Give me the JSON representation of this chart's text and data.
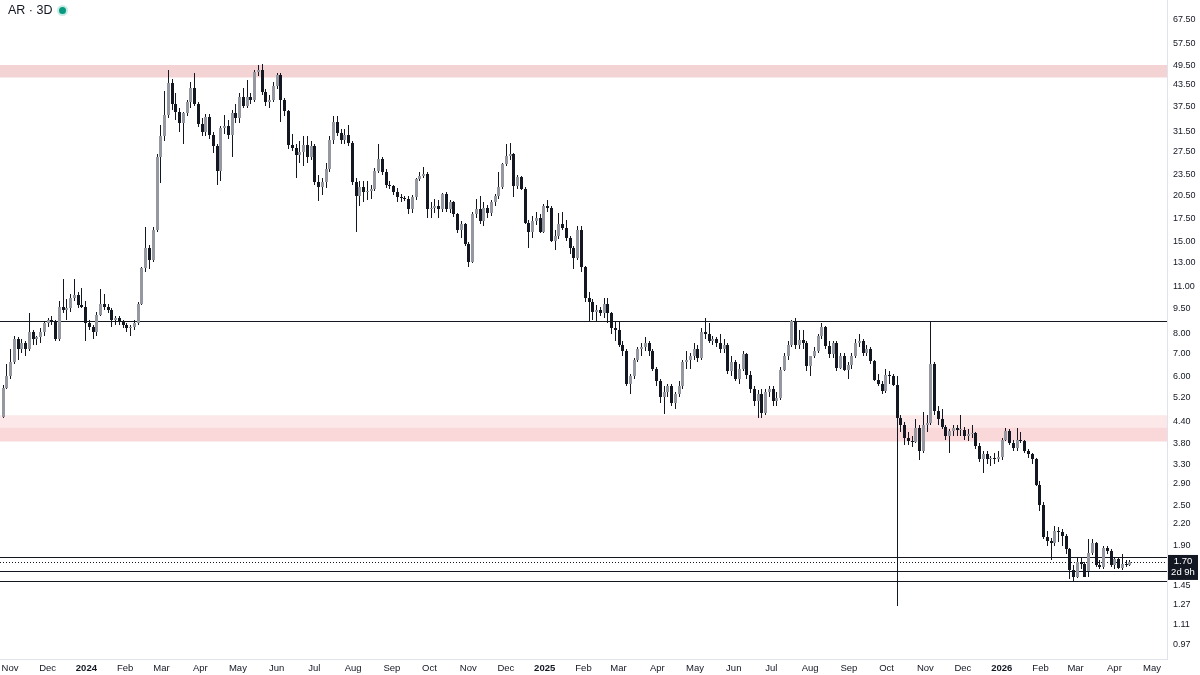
{
  "chart_data": {
    "type": "candlestick",
    "title": "AR · 3D",
    "color": "#131722",
    "x": [
      "2023-10-26",
      "2023-10-29",
      "2023-11-01",
      "2023-11-04",
      "2023-11-07",
      "2023-11-10",
      "2023-11-13",
      "2023-11-16",
      "2023-11-19",
      "2023-11-22",
      "2023-11-25",
      "2023-11-28",
      "2023-12-01",
      "2023-12-04",
      "2023-12-07",
      "2023-12-10",
      "2023-12-13",
      "2023-12-16",
      "2023-12-19",
      "2023-12-22",
      "2023-12-25",
      "2023-12-28",
      "2023-12-31",
      "2024-01-03",
      "2024-01-06",
      "2024-01-09",
      "2024-01-12",
      "2024-01-15",
      "2024-01-18",
      "2024-01-21",
      "2024-01-24",
      "2024-01-27",
      "2024-01-30",
      "2024-02-02",
      "2024-02-05",
      "2024-02-08",
      "2024-02-11",
      "2024-02-14",
      "2024-02-17",
      "2024-02-20",
      "2024-02-23",
      "2024-02-26",
      "2024-02-29",
      "2024-03-03",
      "2024-03-06",
      "2024-03-09",
      "2024-03-12",
      "2024-03-15",
      "2024-03-18",
      "2024-03-21",
      "2024-03-24",
      "2024-03-27",
      "2024-03-30",
      "2024-04-02",
      "2024-04-05",
      "2024-04-08",
      "2024-04-11",
      "2024-04-14",
      "2024-04-17",
      "2024-04-20",
      "2024-04-23",
      "2024-04-26",
      "2024-04-29",
      "2024-05-02",
      "2024-05-05",
      "2024-05-08",
      "2024-05-11",
      "2024-05-14",
      "2024-05-17",
      "2024-05-20",
      "2024-05-23",
      "2024-05-26",
      "2024-05-29",
      "2024-06-01",
      "2024-06-04",
      "2024-06-07",
      "2024-06-10",
      "2024-06-13",
      "2024-06-16",
      "2024-06-19",
      "2024-06-22",
      "2024-06-25",
      "2024-06-28",
      "2024-07-01",
      "2024-07-04",
      "2024-07-07",
      "2024-07-10",
      "2024-07-13",
      "2024-07-16",
      "2024-07-19",
      "2024-07-22",
      "2024-07-25",
      "2024-07-28",
      "2024-07-31",
      "2024-08-03",
      "2024-08-06",
      "2024-08-09",
      "2024-08-12",
      "2024-08-15",
      "2024-08-18",
      "2024-08-21",
      "2024-08-24",
      "2024-08-27",
      "2024-08-30",
      "2024-09-02",
      "2024-09-05",
      "2024-09-08",
      "2024-09-11",
      "2024-09-14",
      "2024-09-17",
      "2024-09-20",
      "2024-09-23",
      "2024-09-26",
      "2024-09-29",
      "2024-10-02",
      "2024-10-05",
      "2024-10-08",
      "2024-10-11",
      "2024-10-14",
      "2024-10-17",
      "2024-10-20",
      "2024-10-23",
      "2024-10-26",
      "2024-10-29",
      "2024-11-01",
      "2024-11-04",
      "2024-11-07",
      "2024-11-10",
      "2024-11-13",
      "2024-11-16",
      "2024-11-19",
      "2024-11-22",
      "2024-11-25",
      "2024-11-28",
      "2024-12-01",
      "2024-12-04",
      "2024-12-07",
      "2024-12-10",
      "2024-12-13",
      "2024-12-16",
      "2024-12-19",
      "2024-12-22",
      "2024-12-25",
      "2024-12-28",
      "2024-12-31",
      "2025-01-03",
      "2025-01-06",
      "2025-01-09",
      "2025-01-12",
      "2025-01-15",
      "2025-01-18",
      "2025-01-21",
      "2025-01-24",
      "2025-01-27",
      "2025-01-30",
      "2025-02-02",
      "2025-02-05",
      "2025-02-08",
      "2025-02-11",
      "2025-02-14",
      "2025-02-17",
      "2025-02-20",
      "2025-02-23",
      "2025-02-26",
      "2025-03-01",
      "2025-03-04",
      "2025-03-07",
      "2025-03-10",
      "2025-03-13",
      "2025-03-16",
      "2025-03-19",
      "2025-03-22",
      "2025-03-25",
      "2025-03-28",
      "2025-03-31",
      "2025-04-03",
      "2025-04-06",
      "2025-04-09",
      "2025-04-12",
      "2025-04-15",
      "2025-04-18",
      "2025-04-21",
      "2025-04-24",
      "2025-04-27",
      "2025-04-30",
      "2025-05-03",
      "2025-05-06",
      "2025-05-09",
      "2025-05-12",
      "2025-05-15",
      "2025-05-18",
      "2025-05-21",
      "2025-05-24",
      "2025-05-27",
      "2025-05-30",
      "2025-06-02",
      "2025-06-05",
      "2025-06-08",
      "2025-06-11",
      "2025-06-14",
      "2025-06-17",
      "2025-06-20",
      "2025-06-23",
      "2025-06-26",
      "2025-06-29",
      "2025-07-02",
      "2025-07-05",
      "2025-07-08",
      "2025-07-11",
      "2025-07-14",
      "2025-07-17",
      "2025-07-20",
      "2025-07-23",
      "2025-07-26",
      "2025-07-29",
      "2025-08-01",
      "2025-08-04",
      "2025-08-07",
      "2025-08-10",
      "2025-08-13",
      "2025-08-16",
      "2025-08-19",
      "2025-08-22",
      "2025-08-25",
      "2025-08-28",
      "2025-08-31",
      "2025-09-03",
      "2025-09-06",
      "2025-09-09",
      "2025-09-12",
      "2025-09-15",
      "2025-09-18",
      "2025-09-21",
      "2025-09-24",
      "2025-09-27",
      "2025-09-30",
      "2025-10-03",
      "2025-10-06",
      "2025-10-09",
      "2025-10-12",
      "2025-10-15",
      "2025-10-18",
      "2025-10-21",
      "2025-10-24",
      "2025-10-27",
      "2025-10-30",
      "2025-11-02",
      "2025-11-05",
      "2025-11-08",
      "2025-11-11",
      "2025-11-14",
      "2025-11-17",
      "2025-11-20",
      "2025-11-23",
      "2025-11-26",
      "2025-11-29",
      "2025-12-02",
      "2025-12-05",
      "2025-12-08",
      "2025-12-11",
      "2025-12-14",
      "2025-12-17",
      "2025-12-20",
      "2025-12-23",
      "2025-12-26",
      "2025-12-29",
      "2026-01-01",
      "2026-01-04",
      "2026-01-07",
      "2026-01-10",
      "2026-01-13",
      "2026-01-16",
      "2026-01-19",
      "2026-01-22",
      "2026-01-25",
      "2026-01-28",
      "2026-01-31",
      "2026-02-03",
      "2026-02-06",
      "2026-02-09",
      "2026-02-12",
      "2026-02-15",
      "2026-02-18",
      "2026-02-21",
      "2026-02-24",
      "2026-02-27",
      "2026-03-02",
      "2026-03-05",
      "2026-03-08",
      "2026-03-11",
      "2026-03-14",
      "2026-03-17",
      "2026-03-20",
      "2026-03-23",
      "2026-03-26",
      "2026-03-29",
      "2026-04-01",
      "2026-04-04",
      "2026-04-07",
      "2026-04-10",
      "2026-04-13"
    ],
    "ohlc": [
      [
        4.55,
        5.65,
        4.5,
        5.55
      ],
      [
        5.55,
        6.5,
        5.5,
        6.0
      ],
      [
        6.0,
        7.2,
        5.9,
        6.6
      ],
      [
        6.6,
        7.9,
        6.5,
        7.7
      ],
      [
        7.7,
        7.8,
        6.7,
        7.2
      ],
      [
        7.2,
        7.7,
        7.0,
        7.5
      ],
      [
        7.5,
        7.6,
        6.9,
        7.2
      ],
      [
        7.2,
        9.2,
        7.1,
        8.1
      ],
      [
        8.1,
        8.2,
        7.4,
        7.7
      ],
      [
        7.7,
        7.9,
        7.4,
        7.8
      ],
      [
        7.8,
        8.3,
        7.5,
        8.1
      ],
      [
        8.1,
        8.7,
        7.9,
        8.6
      ],
      [
        8.6,
        8.9,
        8.4,
        8.8
      ],
      [
        8.8,
        9.0,
        8.5,
        8.7
      ],
      [
        8.7,
        8.8,
        7.6,
        7.7
      ],
      [
        7.7,
        10.0,
        7.6,
        9.6
      ],
      [
        9.6,
        11.6,
        9.2,
        9.4
      ],
      [
        9.4,
        10.1,
        8.8,
        9.5
      ],
      [
        9.5,
        10.5,
        9.3,
        10.2
      ],
      [
        10.2,
        11.6,
        10.0,
        10.4
      ],
      [
        10.4,
        10.6,
        9.5,
        9.7
      ],
      [
        9.7,
        10.9,
        9.5,
        9.6
      ],
      [
        9.6,
        10.0,
        7.6,
        8.6
      ],
      [
        8.6,
        8.8,
        8.2,
        8.4
      ],
      [
        8.4,
        8.5,
        7.7,
        8.1
      ],
      [
        8.1,
        9.3,
        7.9,
        9.1
      ],
      [
        9.1,
        10.8,
        9.0,
        9.8
      ],
      [
        9.8,
        10.5,
        9.4,
        9.6
      ],
      [
        9.6,
        9.8,
        9.2,
        9.4
      ],
      [
        9.4,
        9.5,
        8.4,
        8.8
      ],
      [
        8.8,
        9.0,
        8.5,
        8.9
      ],
      [
        8.9,
        9.0,
        8.5,
        8.7
      ],
      [
        8.7,
        8.8,
        8.3,
        8.5
      ],
      [
        8.5,
        8.6,
        8.1,
        8.3
      ],
      [
        8.3,
        8.5,
        7.9,
        8.4
      ],
      [
        8.4,
        8.8,
        8.2,
        8.6
      ],
      [
        8.6,
        9.9,
        8.5,
        9.8
      ],
      [
        9.8,
        12.6,
        9.7,
        12.5
      ],
      [
        12.5,
        16.5,
        12.2,
        14.3
      ],
      [
        14.3,
        14.6,
        12.4,
        13.2
      ],
      [
        13.2,
        16.5,
        13.0,
        16.2
      ],
      [
        16.2,
        27.0,
        16.0,
        26.6
      ],
      [
        26.6,
        32.9,
        22.3,
        30.5
      ],
      [
        30.5,
        41.5,
        29.5,
        35.4
      ],
      [
        35.4,
        47.8,
        34.5,
        43.8
      ],
      [
        43.8,
        45.0,
        36.5,
        37.9
      ],
      [
        37.9,
        41.0,
        34.0,
        36.0
      ],
      [
        36.0,
        37.0,
        31.5,
        33.5
      ],
      [
        33.5,
        36.0,
        29.0,
        35.8
      ],
      [
        35.8,
        39.0,
        35.0,
        38.5
      ],
      [
        38.5,
        44.0,
        37.0,
        42.5
      ],
      [
        42.5,
        47.0,
        37.5,
        38.0
      ],
      [
        38.0,
        38.5,
        32.5,
        33.3
      ],
      [
        33.3,
        34.5,
        30.5,
        31.5
      ],
      [
        31.5,
        35.5,
        30.5,
        34.7
      ],
      [
        34.7,
        35.5,
        30.0,
        30.8
      ],
      [
        30.8,
        31.5,
        27.2,
        28.5
      ],
      [
        28.5,
        29.0,
        21.9,
        24.2
      ],
      [
        24.2,
        32.8,
        22.6,
        32.3
      ],
      [
        32.3,
        35.4,
        31.0,
        32.8
      ],
      [
        32.8,
        34.0,
        30.0,
        30.8
      ],
      [
        30.8,
        36.5,
        26.6,
        35.7
      ],
      [
        35.7,
        37.9,
        33.5,
        34.5
      ],
      [
        34.5,
        41.0,
        33.5,
        39.8
      ],
      [
        39.8,
        42.3,
        37.0,
        37.5
      ],
      [
        37.5,
        44.8,
        37.0,
        39.8
      ],
      [
        39.8,
        41.0,
        38.0,
        39.0
      ],
      [
        39.0,
        48.0,
        38.5,
        47.4
      ],
      [
        47.4,
        49.5,
        46.0,
        48.0
      ],
      [
        48.0,
        50.0,
        40.5,
        41.2
      ],
      [
        41.2,
        42.0,
        37.5,
        38.5
      ],
      [
        38.5,
        40.5,
        37.0,
        39.0
      ],
      [
        39.0,
        44.0,
        38.5,
        43.0
      ],
      [
        43.0,
        47.0,
        42.0,
        46.3
      ],
      [
        46.3,
        47.0,
        33.7,
        39.0
      ],
      [
        39.0,
        39.5,
        35.0,
        36.3
      ],
      [
        36.3,
        36.5,
        28.0,
        28.8
      ],
      [
        28.8,
        31.0,
        27.6,
        28.2
      ],
      [
        28.2,
        29.0,
        23.0,
        26.9
      ],
      [
        26.9,
        29.5,
        25.5,
        27.5
      ],
      [
        27.5,
        30.5,
        25.0,
        28.8
      ],
      [
        28.8,
        30.5,
        25.5,
        26.6
      ],
      [
        26.6,
        29.5,
        26.0,
        28.5
      ],
      [
        28.5,
        29.0,
        22.0,
        22.4
      ],
      [
        22.4,
        23.5,
        19.7,
        21.6
      ],
      [
        21.6,
        23.0,
        20.5,
        22.4
      ],
      [
        22.4,
        25.5,
        21.5,
        24.5
      ],
      [
        24.5,
        30.5,
        24.0,
        29.8
      ],
      [
        29.8,
        35.0,
        29.0,
        33.7
      ],
      [
        33.7,
        35.0,
        30.5,
        31.2
      ],
      [
        31.2,
        32.0,
        29.0,
        29.8
      ],
      [
        29.8,
        32.0,
        29.0,
        30.8
      ],
      [
        30.8,
        33.0,
        28.5,
        29.1
      ],
      [
        29.1,
        29.5,
        22.0,
        22.4
      ],
      [
        22.4,
        23.0,
        16.0,
        20.4
      ],
      [
        20.4,
        22.5,
        19.0,
        21.6
      ],
      [
        21.6,
        22.5,
        19.5,
        20.9
      ],
      [
        20.9,
        22.5,
        19.8,
        21.1
      ],
      [
        21.1,
        22.0,
        20.0,
        21.3
      ],
      [
        21.3,
        24.6,
        21.0,
        24.1
      ],
      [
        24.1,
        29.0,
        23.8,
        26.1
      ],
      [
        26.1,
        26.5,
        23.5,
        23.9
      ],
      [
        23.9,
        24.5,
        21.5,
        22.0
      ],
      [
        22.0,
        22.5,
        21.3,
        21.8
      ],
      [
        21.8,
        22.0,
        20.5,
        20.9
      ],
      [
        20.9,
        21.5,
        19.5,
        20.2
      ],
      [
        20.2,
        20.6,
        19.6,
        20.1
      ],
      [
        20.1,
        20.4,
        19.7,
        20.0
      ],
      [
        20.0,
        20.4,
        18.0,
        18.6
      ],
      [
        18.6,
        20.5,
        18.2,
        20.2
      ],
      [
        20.2,
        23.0,
        19.8,
        22.8
      ],
      [
        22.8,
        24.0,
        22.5,
        23.4
      ],
      [
        23.4,
        24.8,
        23.0,
        23.6
      ],
      [
        23.6,
        24.0,
        17.6,
        18.6
      ],
      [
        18.6,
        19.5,
        17.5,
        18.8
      ],
      [
        18.8,
        20.0,
        18.2,
        19.0
      ],
      [
        19.0,
        19.8,
        17.6,
        18.6
      ],
      [
        18.6,
        20.8,
        18.3,
        20.6
      ],
      [
        20.6,
        20.9,
        18.3,
        18.6
      ],
      [
        18.6,
        19.8,
        18.2,
        19.5
      ],
      [
        19.5,
        19.7,
        17.7,
        18.0
      ],
      [
        18.0,
        18.1,
        15.8,
        16.2
      ],
      [
        16.2,
        17.2,
        15.3,
        16.8
      ],
      [
        16.8,
        17.0,
        14.5,
        14.7
      ],
      [
        14.7,
        14.9,
        12.6,
        13.0
      ],
      [
        13.0,
        18.3,
        12.9,
        18.0
      ],
      [
        18.0,
        20.0,
        17.5,
        18.6
      ],
      [
        18.6,
        20.4,
        16.8,
        17.2
      ],
      [
        17.2,
        19.5,
        16.6,
        18.8
      ],
      [
        18.8,
        19.2,
        17.5,
        18.2
      ],
      [
        18.2,
        19.8,
        17.8,
        19.5
      ],
      [
        19.5,
        20.6,
        19.0,
        20.4
      ],
      [
        20.4,
        23.9,
        20.0,
        21.6
      ],
      [
        21.6,
        25.5,
        21.3,
        25.3
      ],
      [
        25.3,
        29.0,
        25.0,
        26.7
      ],
      [
        26.7,
        29.2,
        26.0,
        27.0
      ],
      [
        27.0,
        27.3,
        20.2,
        21.8
      ],
      [
        21.8,
        23.5,
        21.3,
        23.1
      ],
      [
        23.1,
        23.4,
        21.2,
        21.4
      ],
      [
        21.4,
        21.6,
        16.8,
        17.0
      ],
      [
        17.0,
        17.3,
        14.3,
        16.0
      ],
      [
        16.0,
        17.8,
        15.3,
        17.2
      ],
      [
        17.2,
        18.3,
        16.7,
        17.6
      ],
      [
        17.6,
        18.0,
        15.8,
        16.0
      ],
      [
        16.0,
        19.3,
        15.8,
        19.0
      ],
      [
        19.0,
        19.8,
        18.3,
        18.8
      ],
      [
        18.8,
        19.0,
        14.9,
        15.0
      ],
      [
        15.0,
        16.2,
        14.1,
        15.5
      ],
      [
        15.5,
        18.2,
        15.2,
        16.8
      ],
      [
        16.8,
        18.3,
        16.2,
        16.4
      ],
      [
        16.4,
        17.3,
        15.0,
        15.3
      ],
      [
        15.3,
        15.5,
        13.7,
        14.3
      ],
      [
        14.3,
        14.5,
        12.4,
        13.4
      ],
      [
        13.4,
        16.6,
        13.2,
        16.2
      ],
      [
        16.2,
        16.6,
        12.2,
        12.6
      ],
      [
        12.6,
        12.7,
        9.9,
        10.2
      ],
      [
        10.2,
        10.6,
        8.7,
        9.9
      ],
      [
        9.9,
        10.1,
        8.8,
        9.3
      ],
      [
        9.3,
        9.7,
        8.7,
        9.4
      ],
      [
        9.4,
        9.6,
        9.0,
        9.2
      ],
      [
        9.2,
        10.2,
        8.9,
        9.8
      ],
      [
        9.8,
        10.2,
        8.6,
        9.2
      ],
      [
        9.2,
        9.3,
        8.0,
        8.3
      ],
      [
        8.3,
        8.7,
        7.6,
        8.2
      ],
      [
        8.2,
        8.7,
        7.3,
        7.4
      ],
      [
        7.4,
        7.6,
        6.9,
        7.1
      ],
      [
        7.1,
        7.2,
        5.6,
        5.7
      ],
      [
        5.7,
        6.1,
        5.3,
        6.0
      ],
      [
        6.0,
        6.8,
        5.9,
        6.7
      ],
      [
        6.7,
        7.3,
        6.6,
        7.2
      ],
      [
        7.2,
        7.5,
        6.9,
        7.3
      ],
      [
        7.3,
        7.8,
        7.1,
        7.5
      ],
      [
        7.5,
        7.6,
        6.9,
        7.1
      ],
      [
        7.1,
        7.2,
        6.2,
        6.3
      ],
      [
        6.3,
        6.4,
        5.6,
        5.8
      ],
      [
        5.8,
        5.9,
        5.0,
        5.2
      ],
      [
        5.2,
        5.6,
        4.64,
        5.4
      ],
      [
        5.4,
        5.7,
        5.2,
        5.6
      ],
      [
        5.6,
        5.7,
        4.9,
        5.0
      ],
      [
        5.0,
        5.4,
        4.8,
        5.3
      ],
      [
        5.3,
        5.8,
        5.2,
        5.6
      ],
      [
        5.6,
        6.7,
        5.5,
        6.6
      ],
      [
        6.6,
        7.1,
        6.3,
        6.7
      ],
      [
        6.7,
        7.0,
        6.3,
        6.9
      ],
      [
        6.9,
        7.5,
        6.7,
        7.2
      ],
      [
        7.2,
        7.4,
        6.6,
        6.8
      ],
      [
        6.8,
        8.3,
        6.7,
        8.1
      ],
      [
        8.1,
        8.9,
        7.7,
        8.0
      ],
      [
        8.0,
        8.6,
        7.5,
        7.6
      ],
      [
        7.6,
        7.9,
        7.4,
        7.7
      ],
      [
        7.7,
        7.8,
        7.3,
        7.5
      ],
      [
        7.5,
        8.0,
        7.0,
        7.2
      ],
      [
        7.2,
        7.7,
        7.0,
        7.4
      ],
      [
        7.4,
        7.5,
        6.1,
        6.2
      ],
      [
        6.2,
        6.9,
        6.0,
        6.6
      ],
      [
        6.6,
        6.7,
        5.8,
        5.9
      ],
      [
        5.9,
        6.5,
        5.7,
        6.3
      ],
      [
        6.3,
        7.1,
        6.2,
        6.95
      ],
      [
        6.95,
        7.0,
        5.9,
        6.06
      ],
      [
        6.06,
        6.2,
        5.35,
        5.5
      ],
      [
        5.5,
        5.6,
        4.9,
        5.06
      ],
      [
        5.06,
        5.45,
        4.52,
        5.3
      ],
      [
        5.3,
        5.5,
        4.5,
        4.67
      ],
      [
        4.67,
        5.5,
        4.6,
        5.4
      ],
      [
        5.4,
        5.6,
        5.2,
        5.48
      ],
      [
        5.48,
        5.6,
        4.9,
        5.06
      ],
      [
        5.06,
        5.4,
        4.9,
        5.18
      ],
      [
        5.18,
        6.4,
        5.1,
        6.27
      ],
      [
        6.27,
        7.0,
        6.2,
        6.87
      ],
      [
        6.87,
        7.6,
        6.7,
        7.4
      ],
      [
        7.4,
        8.8,
        7.3,
        8.7
      ],
      [
        8.7,
        8.9,
        7.2,
        7.4
      ],
      [
        7.4,
        8.2,
        7.2,
        7.69
      ],
      [
        7.69,
        8.2,
        7.2,
        7.52
      ],
      [
        7.52,
        7.6,
        6.2,
        6.42
      ],
      [
        6.42,
        6.9,
        6.0,
        6.87
      ],
      [
        6.87,
        7.3,
        6.8,
        7.1
      ],
      [
        7.1,
        8.0,
        7.0,
        7.87
      ],
      [
        7.87,
        8.6,
        7.7,
        8.38
      ],
      [
        8.38,
        8.45,
        7.2,
        7.35
      ],
      [
        7.35,
        7.6,
        6.8,
        6.95
      ],
      [
        6.95,
        7.6,
        6.8,
        7.52
      ],
      [
        7.52,
        7.6,
        6.2,
        6.35
      ],
      [
        6.35,
        7.0,
        6.3,
        6.87
      ],
      [
        6.87,
        7.0,
        6.2,
        6.27
      ],
      [
        6.27,
        6.6,
        5.9,
        6.49
      ],
      [
        6.49,
        7.0,
        6.3,
        6.87
      ],
      [
        6.87,
        7.7,
        6.8,
        7.52
      ],
      [
        7.52,
        8.0,
        7.3,
        7.6
      ],
      [
        7.6,
        7.7,
        6.9,
        7.03
      ],
      [
        7.03,
        7.4,
        6.9,
        7.19
      ],
      [
        7.19,
        7.3,
        6.5,
        6.63
      ],
      [
        6.63,
        6.7,
        5.8,
        5.86
      ],
      [
        5.86,
        6.1,
        5.6,
        5.7
      ],
      [
        5.7,
        5.8,
        5.3,
        5.42
      ],
      [
        5.42,
        6.3,
        5.35,
        6.06
      ],
      [
        6.06,
        6.2,
        5.7,
        6.0
      ],
      [
        6.0,
        6.1,
        5.6,
        5.66
      ],
      [
        5.66,
        5.99,
        1.26,
        4.52
      ],
      [
        4.52,
        4.6,
        4.1,
        4.32
      ],
      [
        4.32,
        4.4,
        3.75,
        3.94
      ],
      [
        3.94,
        4.1,
        3.75,
        3.85
      ],
      [
        3.85,
        4.0,
        3.7,
        3.84
      ],
      [
        3.84,
        4.47,
        3.8,
        4.22
      ],
      [
        4.22,
        4.3,
        3.4,
        3.6
      ],
      [
        3.6,
        4.7,
        3.55,
        4.32
      ],
      [
        4.32,
        4.6,
        4.1,
        4.36
      ],
      [
        4.36,
        8.7,
        4.3,
        6.5
      ],
      [
        6.5,
        6.6,
        4.6,
        4.72
      ],
      [
        4.72,
        4.9,
        4.3,
        4.47
      ],
      [
        4.47,
        4.8,
        4.2,
        4.24
      ],
      [
        4.24,
        4.3,
        3.9,
        3.99
      ],
      [
        3.99,
        4.2,
        3.57,
        4.13
      ],
      [
        4.13,
        4.3,
        4.0,
        4.21
      ],
      [
        4.21,
        4.3,
        4.0,
        4.15
      ],
      [
        4.15,
        4.6,
        4.0,
        4.17
      ],
      [
        4.17,
        4.25,
        3.9,
        3.99
      ],
      [
        3.99,
        4.2,
        3.85,
        4.05
      ],
      [
        4.05,
        4.3,
        3.95,
        4.08
      ],
      [
        4.08,
        4.1,
        3.65,
        3.73
      ],
      [
        3.73,
        3.8,
        3.35,
        3.41
      ],
      [
        3.41,
        3.6,
        3.11,
        3.53
      ],
      [
        3.53,
        3.6,
        3.3,
        3.41
      ],
      [
        3.41,
        3.5,
        3.25,
        3.45
      ],
      [
        3.45,
        3.55,
        3.3,
        3.43
      ],
      [
        3.43,
        3.6,
        3.35,
        3.47
      ],
      [
        3.47,
        3.95,
        3.4,
        3.9
      ],
      [
        3.9,
        4.21,
        3.85,
        4.13
      ],
      [
        4.13,
        4.2,
        3.75,
        3.81
      ],
      [
        3.81,
        3.9,
        3.6,
        3.69
      ],
      [
        3.69,
        4.21,
        3.6,
        3.9
      ],
      [
        3.9,
        4.1,
        3.8,
        3.86
      ],
      [
        3.86,
        3.9,
        3.55,
        3.61
      ],
      [
        3.61,
        3.65,
        3.45,
        3.53
      ],
      [
        3.53,
        3.55,
        3.3,
        3.41
      ],
      [
        3.41,
        3.45,
        2.85,
        2.87
      ],
      [
        2.87,
        2.95,
        2.4,
        2.5
      ],
      [
        2.5,
        2.55,
        1.98,
        2.01
      ],
      [
        2.01,
        2.1,
        1.9,
        1.96
      ],
      [
        1.96,
        2.0,
        1.72,
        1.93
      ],
      [
        1.93,
        2.17,
        1.9,
        2.1
      ],
      [
        2.1,
        2.15,
        1.95,
        2.08
      ],
      [
        2.08,
        2.12,
        1.9,
        2.03
      ],
      [
        2.03,
        2.05,
        1.8,
        1.85
      ],
      [
        1.85,
        1.87,
        1.51,
        1.61
      ],
      [
        1.61,
        1.66,
        1.49,
        1.54
      ],
      [
        1.54,
        1.75,
        1.52,
        1.7
      ],
      [
        1.7,
        1.75,
        1.62,
        1.68
      ],
      [
        1.68,
        1.7,
        1.53,
        1.54
      ],
      [
        1.6,
        1.98,
        1.53,
        1.81
      ],
      [
        1.81,
        1.98,
        1.78,
        1.93
      ],
      [
        1.93,
        1.95,
        1.64,
        1.66
      ],
      [
        1.66,
        1.72,
        1.62,
        1.64
      ],
      [
        1.64,
        1.9,
        1.62,
        1.87
      ],
      [
        1.87,
        1.9,
        1.8,
        1.83
      ],
      [
        1.83,
        1.85,
        1.64,
        1.66
      ],
      [
        1.66,
        1.76,
        1.62,
        1.74
      ],
      [
        1.74,
        1.76,
        1.62,
        1.63
      ],
      [
        1.63,
        1.8,
        1.61,
        1.68
      ],
      [
        1.68,
        1.72,
        1.64,
        1.66
      ],
      [
        1.66,
        1.72,
        1.65,
        1.7
      ]
    ],
    "colors": [
      "#9598a1",
      "#9598a1",
      "#9598a1",
      "#9598a1",
      "#131722",
      "#9598a1",
      "#131722",
      "#9598a1",
      "#131722",
      "#9598a1",
      "#9598a1",
      "#9598a1",
      "#9598a1",
      "#131722",
      "#131722",
      "#9598a1",
      "#131722",
      "#9598a1",
      "#9598a1",
      "#9598a1",
      "#131722",
      "#131722",
      "#131722",
      "#131722",
      "#131722",
      "#9598a1",
      "#9598a1",
      "#131722",
      "#131722",
      "#131722",
      "#9598a1",
      "#131722",
      "#131722",
      "#131722",
      "#9598a1",
      "#9598a1",
      "#9598a1",
      "#9598a1",
      "#9598a1",
      "#131722",
      "#9598a1",
      "#9598a1",
      "#9598a1",
      "#9598a1",
      "#9598a1",
      "#131722",
      "#131722",
      "#131722",
      "#9598a1",
      "#9598a1",
      "#9598a1",
      "#131722",
      "#131722",
      "#131722",
      "#9598a1",
      "#131722",
      "#131722",
      "#131722",
      "#9598a1",
      "#9598a1",
      "#131722",
      "#9598a1",
      "#131722",
      "#9598a1",
      "#131722",
      "#9598a1",
      "#131722",
      "#9598a1",
      "#9598a1",
      "#131722",
      "#131722",
      "#9598a1",
      "#9598a1",
      "#9598a1",
      "#131722",
      "#131722",
      "#131722",
      "#131722",
      "#131722",
      "#9598a1",
      "#9598a1",
      "#131722",
      "#9598a1",
      "#131722",
      "#131722",
      "#9598a1",
      "#9598a1",
      "#9598a1",
      "#9598a1",
      "#131722",
      "#131722",
      "#9598a1",
      "#131722",
      "#131722",
      "#131722",
      "#9598a1",
      "#131722",
      "#9598a1",
      "#9598a1",
      "#9598a1",
      "#9598a1",
      "#131722",
      "#131722",
      "#131722",
      "#131722",
      "#131722",
      "#131722",
      "#131722",
      "#131722",
      "#9598a1",
      "#9598a1",
      "#9598a1",
      "#9598a1",
      "#131722",
      "#9598a1",
      "#9598a1",
      "#131722",
      "#9598a1",
      "#131722",
      "#9598a1",
      "#131722",
      "#131722",
      "#9598a1",
      "#131722",
      "#131722",
      "#9598a1",
      "#9598a1",
      "#131722",
      "#9598a1",
      "#131722",
      "#9598a1",
      "#9598a1",
      "#9598a1",
      "#9598a1",
      "#9598a1",
      "#9598a1",
      "#131722",
      "#9598a1",
      "#131722",
      "#131722",
      "#131722",
      "#9598a1",
      "#9598a1",
      "#131722",
      "#9598a1",
      "#131722",
      "#131722",
      "#9598a1",
      "#9598a1",
      "#131722",
      "#131722",
      "#131722",
      "#131722",
      "#9598a1",
      "#131722",
      "#131722",
      "#131722",
      "#131722",
      "#9598a1",
      "#131722",
      "#9598a1",
      "#131722",
      "#131722",
      "#131722",
      "#131722",
      "#131722",
      "#131722",
      "#9598a1",
      "#9598a1",
      "#9598a1",
      "#9598a1",
      "#9598a1",
      "#131722",
      "#131722",
      "#131722",
      "#131722",
      "#9598a1",
      "#9598a1",
      "#131722",
      "#9598a1",
      "#9598a1",
      "#9598a1",
      "#9598a1",
      "#9598a1",
      "#9598a1",
      "#131722",
      "#9598a1",
      "#131722",
      "#131722",
      "#9598a1",
      "#131722",
      "#131722",
      "#9598a1",
      "#131722",
      "#9598a1",
      "#131722",
      "#9598a1",
      "#9598a1",
      "#131722",
      "#131722",
      "#131722",
      "#9598a1",
      "#131722",
      "#9598a1",
      "#9598a1",
      "#131722",
      "#9598a1",
      "#9598a1",
      "#9598a1",
      "#9598a1",
      "#9598a1",
      "#131722",
      "#9598a1",
      "#131722",
      "#131722",
      "#9598a1",
      "#9598a1",
      "#9598a1",
      "#9598a1",
      "#131722",
      "#131722",
      "#9598a1",
      "#131722",
      "#9598a1",
      "#131722",
      "#9598a1",
      "#9598a1",
      "#9598a1",
      "#9598a1",
      "#131722",
      "#9598a1",
      "#131722",
      "#131722",
      "#131722",
      "#131722",
      "#9598a1",
      "#131722",
      "#131722",
      "#131722",
      "#131722",
      "#131722",
      "#131722",
      "#131722",
      "#9598a1",
      "#131722",
      "#9598a1",
      "#9598a1",
      "#9598a1",
      "#131722",
      "#131722",
      "#131722",
      "#131722",
      "#9598a1",
      "#9598a1",
      "#131722",
      "#9598a1",
      "#131722",
      "#9598a1",
      "#9598a1",
      "#131722",
      "#131722",
      "#9598a1",
      "#131722",
      "#9598a1",
      "#131722",
      "#9598a1",
      "#9598a1",
      "#9598a1",
      "#131722",
      "#131722",
      "#9598a1",
      "#131722",
      "#131722",
      "#131722",
      "#131722",
      "#131722",
      "#131722",
      "#131722",
      "#131722",
      "#131722",
      "#9598a1",
      "#131722",
      "#131722",
      "#131722",
      "#131722",
      "#131722",
      "#9598a1",
      "#131722",
      "#131722",
      "#9598a1",
      "#9598a1",
      "#131722",
      "#131722",
      "#9598a1",
      "#131722",
      "#131722",
      "#9598a1",
      "#131722",
      "#9598a1",
      "#131722",
      "#9598a1"
    ],
    "xlim": [
      "2023-10-24",
      "2026-05-13"
    ],
    "xticks": [
      {
        "value": "2023-11",
        "label": "Nov"
      },
      {
        "value": "2023-12",
        "label": "Dec"
      },
      {
        "value": "2024-01",
        "label": "2024"
      },
      {
        "value": "2024-02",
        "label": "Feb"
      },
      {
        "value": "2024-03",
        "label": "Mar"
      },
      {
        "value": "2024-04",
        "label": "Apr"
      },
      {
        "value": "2024-05",
        "label": "May"
      },
      {
        "value": "2024-06",
        "label": "Jun"
      },
      {
        "value": "2024-07",
        "label": "Jul"
      },
      {
        "value": "2024-08",
        "label": "Aug"
      },
      {
        "value": "2024-09",
        "label": "Sep"
      },
      {
        "value": "2024-10",
        "label": "Oct"
      },
      {
        "value": "2024-11",
        "label": "Nov"
      },
      {
        "value": "2024-12",
        "label": "Dec"
      },
      {
        "value": "2025-01",
        "label": "2025"
      },
      {
        "value": "2025-02",
        "label": "Feb"
      },
      {
        "value": "2025-03",
        "label": "Mar"
      },
      {
        "value": "2025-04",
        "label": "Apr"
      },
      {
        "value": "2025-05",
        "label": "May"
      },
      {
        "value": "2025-06",
        "label": "Jun"
      },
      {
        "value": "2025-07",
        "label": "Jul"
      },
      {
        "value": "2025-08",
        "label": "Aug"
      },
      {
        "value": "2025-09",
        "label": "Sep"
      },
      {
        "value": "2025-10",
        "label": "Oct"
      },
      {
        "value": "2025-11",
        "label": "Nov"
      },
      {
        "value": "2025-12",
        "label": "Dec"
      },
      {
        "value": "2026-01",
        "label": "2026"
      },
      {
        "value": "2026-02",
        "label": "Feb"
      },
      {
        "value": "2026-03",
        "label": "Mar"
      },
      {
        "value": "2026-04",
        "label": "Apr"
      },
      {
        "value": "2026-05",
        "label": "May"
      }
    ],
    "ylim": [
      0.88,
      77
    ],
    "log": true,
    "yticks": [
      0.97,
      1.11,
      1.27,
      1.45,
      {
        "value": 1.9,
        "label": "1.90"
      },
      {
        "value": 2.2,
        "label": "2.20"
      },
      {
        "value": 2.5,
        "label": "2.50"
      },
      {
        "value": 2.9,
        "label": "2.90"
      },
      {
        "value": 3.3,
        "label": "3.30"
      },
      {
        "value": 3.8,
        "label": "3.80"
      },
      {
        "value": 4.4,
        "label": "4.40"
      },
      {
        "value": 5.2,
        "label": "5.20"
      },
      {
        "value": 6,
        "label": "6.00"
      },
      {
        "value": 7,
        "label": "7.00"
      },
      {
        "value": 8,
        "label": "8.00"
      },
      {
        "value": 9.5,
        "label": "9.50"
      },
      {
        "value": 11,
        "label": "11.00"
      },
      {
        "value": 13,
        "label": "13.00"
      },
      {
        "value": 15,
        "label": "15.00"
      },
      {
        "value": 17.5,
        "label": "17.50"
      },
      {
        "value": 20.5,
        "label": "20.50"
      },
      {
        "value": 23.5,
        "label": "23.50"
      },
      {
        "value": 27.5,
        "label": "27.50"
      },
      {
        "value": 31.5,
        "label": "31.50"
      },
      {
        "value": 37.5,
        "label": "37.50"
      },
      {
        "value": 43.5,
        "label": "43.50"
      },
      {
        "value": 49.5,
        "label": "49.50"
      },
      {
        "value": 57.5,
        "label": "57.50"
      },
      {
        "value": 67.5,
        "label": "67.50"
      }
    ],
    "bands": [
      {
        "axis": "y",
        "from": 45.5,
        "to": 49.5,
        "color": "#f4d3d5"
      },
      {
        "axis": "y",
        "from": 4.23,
        "to": 4.6,
        "color": "#fde8e9"
      },
      {
        "axis": "y",
        "from": 3.85,
        "to": 4.23,
        "color": "#fad8da"
      }
    ],
    "ref_lines": [
      {
        "axis": "y",
        "value": 8.7,
        "color": "#131722"
      },
      {
        "axis": "y",
        "value": 1.76,
        "color": "#131722"
      },
      {
        "axis": "y",
        "value": 1.6,
        "color": "#131722"
      },
      {
        "axis": "y",
        "value": 1.49,
        "color": "#131722"
      },
      {
        "axis": "y",
        "value": 1.7,
        "label": "1.70",
        "color": "#131722",
        "line_style": "dotted"
      }
    ],
    "annotations": [
      "2d 9h"
    ]
  }
}
